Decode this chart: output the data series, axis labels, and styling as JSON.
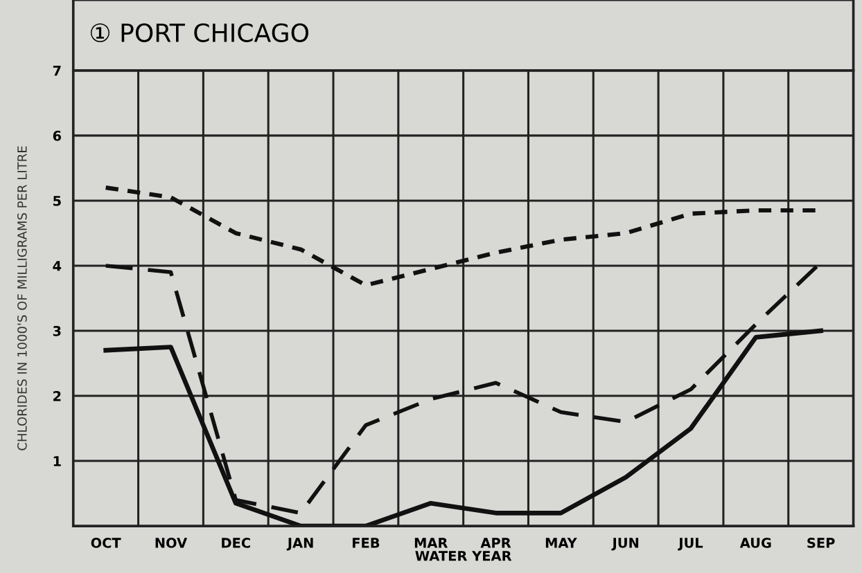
{
  "chart_data": {
    "type": "line",
    "title": "① PORT CHICAGO",
    "xlabel": "WATER YEAR",
    "ylabel": "CHLORIDES IN 1000'S OF MILLIGRAMS PER LITRE",
    "categories": [
      "OCT",
      "NOV",
      "DEC",
      "JAN",
      "FEB",
      "MAR",
      "APR",
      "MAY",
      "JUN",
      "JUL",
      "AUG",
      "SEP"
    ],
    "series": [
      {
        "color": "#111111",
        "line_style": "solid",
        "values": [
          2.7,
          2.75,
          0.35,
          0,
          0,
          0.35,
          0.2,
          0.2,
          0.75,
          1.5,
          2.9,
          3.0
        ]
      },
      {
        "color": "#111111",
        "line_style": "dashed",
        "values": [
          4.0,
          3.9,
          0.4,
          0.2,
          1.55,
          1.95,
          2.2,
          1.75,
          1.6,
          2.1,
          3.1,
          4.05
        ]
      },
      {
        "color": "#111111",
        "line_style": "dotted",
        "values": [
          5.2,
          5.05,
          4.5,
          4.25,
          3.7,
          3.95,
          4.2,
          4.4,
          4.5,
          4.8,
          4.85,
          4.85
        ]
      }
    ],
    "ylim": [
      0,
      7
    ],
    "yticks": [
      1,
      2,
      3,
      4,
      5,
      6,
      7
    ],
    "grid": true,
    "marker": "none"
  }
}
